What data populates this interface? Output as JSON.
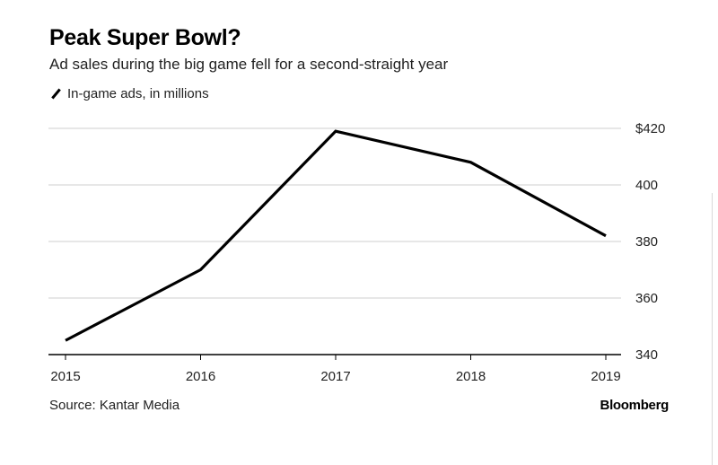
{
  "header": {
    "title": "Peak Super Bowl?",
    "subtitle": "Ad sales during the big game fell for a second-straight year",
    "legend_label": "In-game ads, in millions"
  },
  "footer": {
    "source": "Source: Kantar Media",
    "brand": "Bloomberg"
  },
  "chart_data": {
    "type": "line",
    "title": "Peak Super Bowl?",
    "subtitle": "Ad sales during the big game fell for a second-straight year",
    "xlabel": "",
    "ylabel": "",
    "x": [
      "2015",
      "2016",
      "2017",
      "2018",
      "2019"
    ],
    "series": [
      {
        "name": "In-game ads, in millions",
        "values": [
          345,
          370,
          419,
          408,
          382
        ],
        "color": "#000000"
      }
    ],
    "ylim": [
      340,
      420
    ],
    "yticks": [
      340,
      360,
      380,
      400,
      420
    ],
    "ytick_labels": [
      "340",
      "360",
      "380",
      "400",
      "$420"
    ],
    "grid": true,
    "y_axis_side": "right",
    "legend": "top-left"
  }
}
